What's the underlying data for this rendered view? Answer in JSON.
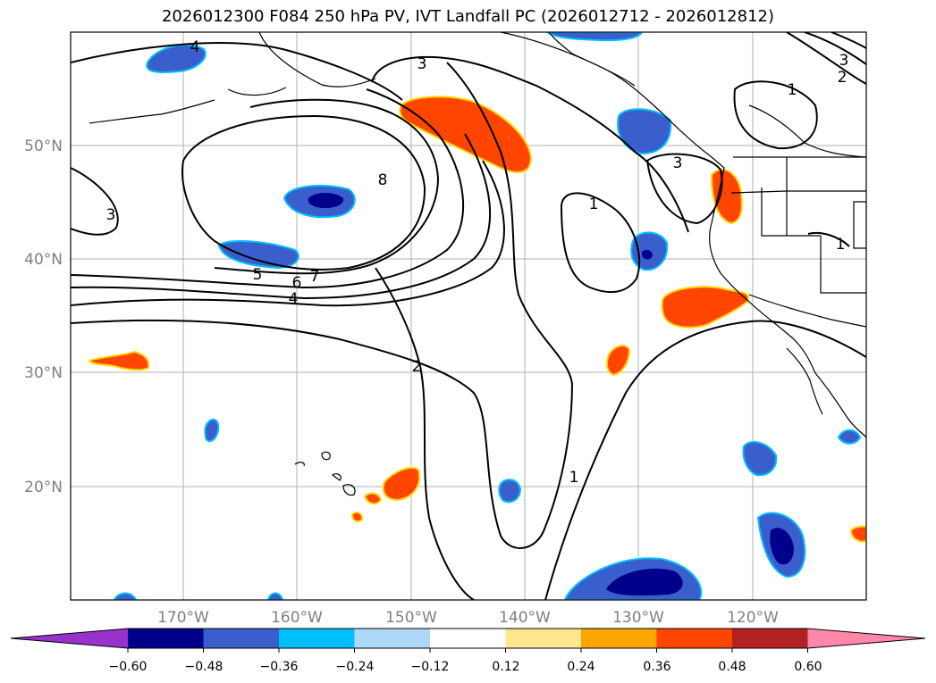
{
  "title": "2026012300 F084 250 hPa PV, IVT Landfall PC (2026012712 - 2026012812)",
  "lat_labels": [
    "50°N",
    "40°N",
    "30°N",
    "20°N"
  ],
  "lon_labels": [
    "170°W",
    "160°W",
    "150°W",
    "140°W",
    "130°W",
    "120°W"
  ],
  "contour_labels": [
    "4",
    "3",
    "2",
    "1",
    "3",
    "8",
    "3",
    "5",
    "6",
    "7",
    "4",
    "1",
    "2",
    "1",
    "1",
    "3"
  ],
  "colorbar": {
    "tick_labels": [
      "−0.60",
      "−0.48",
      "−0.36",
      "−0.24",
      "−0.12",
      "0.12",
      "0.24",
      "0.36",
      "0.48",
      "0.60"
    ],
    "colors": [
      "#9932cc",
      "#00008b",
      "#3a5fcd",
      "#00bfff",
      "#add8f7",
      "#ffffff",
      "#ffe68f",
      "#ffa500",
      "#ff4500",
      "#b22222",
      "#ff88aa"
    ]
  },
  "colors": {
    "positive": "#ff4500",
    "positive_edge": "#ffd700",
    "negative": "#3a5fcd",
    "negative_core": "#00008b",
    "negative_edge": "#00bfff",
    "grid": "#b0b0b0"
  }
}
